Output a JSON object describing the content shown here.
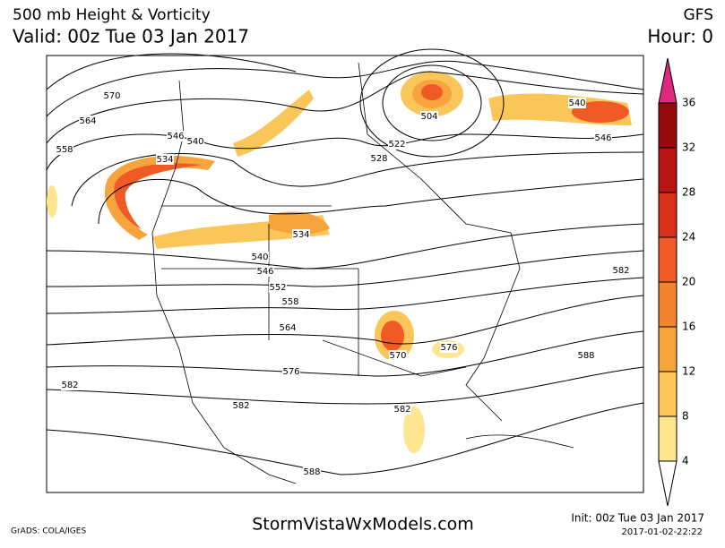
{
  "header": {
    "title": "500 mb Height & Vorticity",
    "valid": "Valid: 00z Tue 03 Jan 2017",
    "model": "GFS",
    "hour": "Hour: 0"
  },
  "colorbar": {
    "ticks": [
      4,
      8,
      12,
      16,
      20,
      24,
      28,
      32,
      36
    ],
    "colors": [
      "#ffffff",
      "#fde68f",
      "#fbc659",
      "#f8a43c",
      "#f5822f",
      "#ef5a25",
      "#d8301a",
      "#b81414",
      "#960a0a",
      "#e0287f"
    ]
  },
  "contour_labels": [
    "570",
    "564",
    "558",
    "546",
    "540",
    "534",
    "528",
    "522",
    "504",
    "540",
    "546",
    "534",
    "540",
    "546",
    "552",
    "558",
    "564",
    "570",
    "576",
    "576",
    "582",
    "582",
    "582",
    "582",
    "588",
    "588"
  ],
  "footer": {
    "grads": "GrADS: COLA/IGES",
    "site": "StormVistaWxModels.com",
    "init": "Init: 00z Tue 03 Jan 2017",
    "timestamp": "2017-01-02-22:22"
  }
}
